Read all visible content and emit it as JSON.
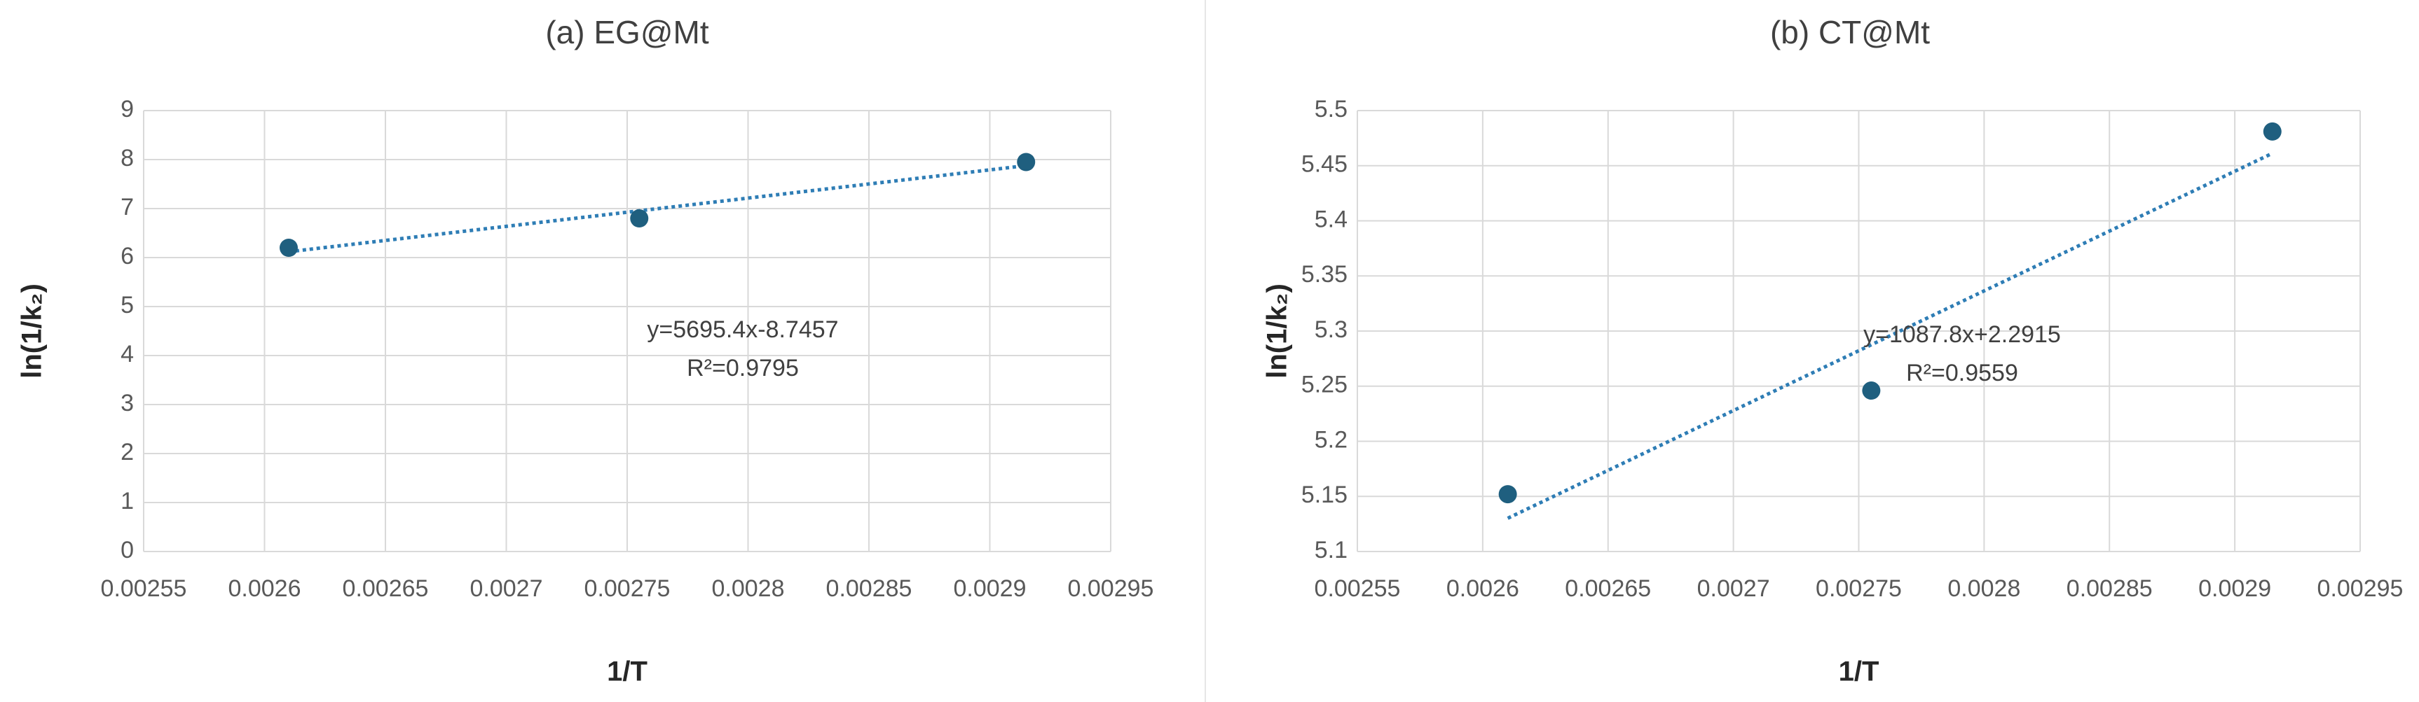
{
  "chart_data": [
    {
      "type": "scatter",
      "title": "(a) EG@Mt",
      "x_label": "1/T",
      "y_label": "ln(1/k₂)",
      "series": [
        {
          "color": "#1f5f7f",
          "x": [
            0.00261,
            0.002755,
            0.002915
          ],
          "values": [
            6.2,
            6.8,
            7.95
          ]
        }
      ],
      "trendline": {
        "color": "#2e7db5",
        "label": [
          "y=5695.4x-8.7457",
          "R²=0.9795"
        ]
      },
      "xlim": [
        0.00255,
        0.00295
      ],
      "xticks": [
        0.00255,
        0.0026,
        0.00265,
        0.0027,
        0.00275,
        0.0028,
        0.00285,
        0.0029,
        0.00295
      ],
      "ylim": [
        0,
        9
      ],
      "yticks": [
        0,
        1,
        2,
        3,
        4,
        5,
        6,
        7,
        8,
        9
      ],
      "grid": true
    },
    {
      "type": "scatter",
      "title": "(b) CT@Mt",
      "x_label": "1/T",
      "y_label": "ln(1/k₂)",
      "series": [
        {
          "color": "#1f5f7f",
          "x": [
            0.00261,
            0.002755,
            0.002915
          ],
          "values": [
            5.152,
            5.246,
            5.481
          ]
        }
      ],
      "trendline": {
        "color": "#2e7db5",
        "label": [
          "y=1087.8x+2.2915",
          "R²=0.9559"
        ]
      },
      "xlim": [
        0.00255,
        0.00295
      ],
      "xticks": [
        0.00255,
        0.0026,
        0.00265,
        0.0027,
        0.00275,
        0.0028,
        0.00285,
        0.0029,
        0.00295
      ],
      "ylim": [
        5.1,
        5.5
      ],
      "yticks": [
        5.1,
        5.15,
        5.2,
        5.25,
        5.3,
        5.35,
        5.4,
        5.45,
        5.5
      ],
      "grid": true
    }
  ]
}
